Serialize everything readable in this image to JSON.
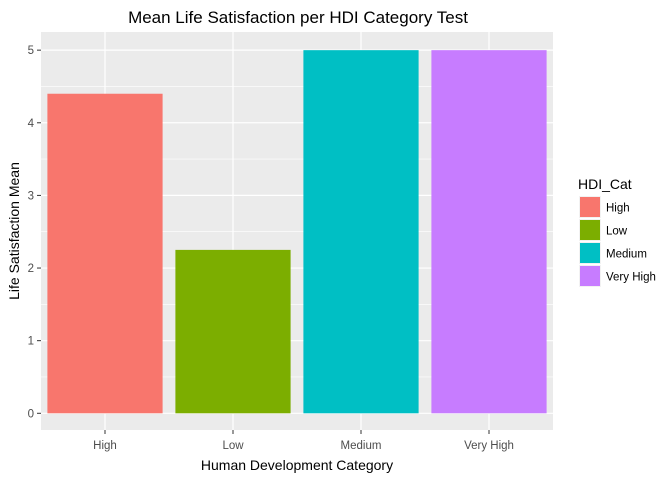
{
  "chart_data": {
    "type": "bar",
    "title": "Mean Life Satisfaction per HDI Category Test",
    "xlabel": "Human Development Category",
    "ylabel": "Life Satisfaction Mean",
    "categories": [
      "High",
      "Low",
      "Medium",
      "Very High"
    ],
    "values": [
      4.4,
      2.25,
      5.0,
      5.0
    ],
    "colors": [
      "#F8766D",
      "#7CAE00",
      "#00BFC4",
      "#C77CFF"
    ],
    "ylim": [
      -0.23,
      5.25
    ],
    "yticks": [
      0,
      1,
      2,
      3,
      4,
      5
    ],
    "yminor": [
      0.5,
      1.5,
      2.5,
      3.5,
      4.5
    ],
    "grid": true,
    "panel_background": "#EBEBEB",
    "grid_color": "#FFFFFF",
    "legend": {
      "title": "HDI_Cat",
      "position": "right",
      "entries": [
        "High",
        "Low",
        "Medium",
        "Very High"
      ]
    }
  }
}
